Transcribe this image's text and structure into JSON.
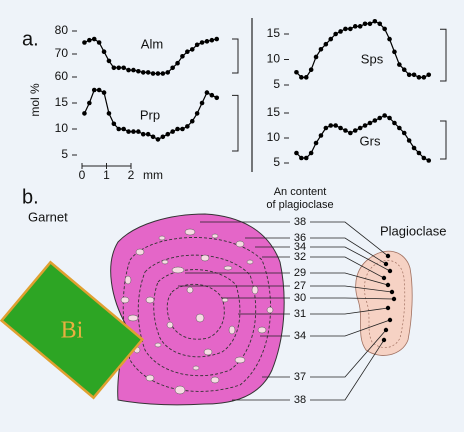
{
  "panel_a": {
    "label": "a.",
    "y_label": "mol %"
  },
  "chart_data": [
    {
      "type": "line",
      "label": "Alm",
      "color": "#000000",
      "x": [
        0.1,
        0.3,
        0.5,
        0.7,
        0.9,
        1.1,
        1.3,
        1.5,
        1.7,
        1.9,
        2.1,
        2.3,
        2.5,
        2.7,
        2.9,
        3.1,
        3.3,
        3.5,
        3.7,
        3.9,
        4.1,
        4.3,
        4.5,
        4.7,
        4.9,
        5.1,
        5.3,
        5.5
      ],
      "values": [
        75,
        76,
        76.5,
        75,
        71,
        67,
        64,
        64,
        64,
        63,
        63,
        62.5,
        62,
        62,
        61.5,
        61.5,
        61.5,
        62,
        64,
        66,
        69,
        71,
        72,
        74,
        75,
        75.5,
        76,
        76.5
      ],
      "ylim": [
        60,
        80
      ],
      "yticks": [
        60,
        70,
        80
      ]
    },
    {
      "type": "line",
      "label": "Prp",
      "color": "#000000",
      "x": [
        0.1,
        0.3,
        0.5,
        0.7,
        0.9,
        1.1,
        1.3,
        1.5,
        1.7,
        1.9,
        2.1,
        2.3,
        2.5,
        2.7,
        2.9,
        3.1,
        3.3,
        3.5,
        3.7,
        3.9,
        4.1,
        4.3,
        4.5,
        4.7,
        4.9,
        5.1,
        5.3,
        5.5
      ],
      "values": [
        13,
        15,
        17.5,
        17.5,
        17,
        13,
        11,
        10,
        10,
        9.5,
        9.5,
        9.5,
        9,
        9,
        8.5,
        8,
        8.5,
        9,
        9.5,
        10,
        10,
        10.5,
        11.5,
        13,
        15,
        17,
        16.5,
        16
      ],
      "ylim": [
        5,
        18
      ],
      "yticks": [
        5,
        10,
        15
      ],
      "xticks": [
        0,
        1,
        2
      ],
      "xlabel": "mm"
    },
    {
      "type": "line",
      "label": "Sps",
      "color": "#000000",
      "x": [
        0.1,
        0.3,
        0.5,
        0.7,
        0.9,
        1.1,
        1.3,
        1.5,
        1.7,
        1.9,
        2.1,
        2.3,
        2.5,
        2.7,
        2.9,
        3.1,
        3.3,
        3.5,
        3.7,
        3.9,
        4.1,
        4.3,
        4.5,
        4.7,
        4.9,
        5.1,
        5.3,
        5.5
      ],
      "values": [
        7.5,
        6.5,
        6.5,
        8,
        10.5,
        12,
        13,
        14,
        15,
        15.5,
        16,
        16,
        16.5,
        16.5,
        17,
        17,
        17.5,
        17,
        16,
        14,
        11.5,
        9,
        8,
        7,
        7,
        6.5,
        6.5,
        7
      ],
      "ylim": [
        5,
        17.5
      ],
      "yticks": [
        5,
        10,
        15
      ]
    },
    {
      "type": "line",
      "label": "Grs",
      "color": "#000000",
      "x": [
        0.1,
        0.3,
        0.5,
        0.7,
        0.9,
        1.1,
        1.3,
        1.5,
        1.7,
        1.9,
        2.1,
        2.3,
        2.5,
        2.7,
        2.9,
        3.1,
        3.3,
        3.5,
        3.7,
        3.9,
        4.1,
        4.3,
        4.5,
        4.7,
        4.9,
        5.1,
        5.3,
        5.5
      ],
      "values": [
        7,
        6,
        6,
        7,
        9,
        10.5,
        12,
        12.5,
        12.5,
        12,
        11.5,
        11,
        11.5,
        12,
        12.5,
        13,
        13.5,
        14,
        14.5,
        14,
        13,
        12,
        11,
        9.5,
        8,
        7,
        6,
        5.5
      ],
      "ylim": [
        5,
        15
      ],
      "yticks": [
        5,
        10,
        15
      ]
    }
  ],
  "panel_b": {
    "label": "b.",
    "garnet": "Garnet",
    "plagioclase": "Plagioclase",
    "biotite": "Bi",
    "an_title": [
      "An content",
      "of plagioclase"
    ],
    "an_values": [
      38,
      36,
      34,
      32,
      29,
      27,
      30,
      31,
      34,
      37,
      38
    ]
  }
}
